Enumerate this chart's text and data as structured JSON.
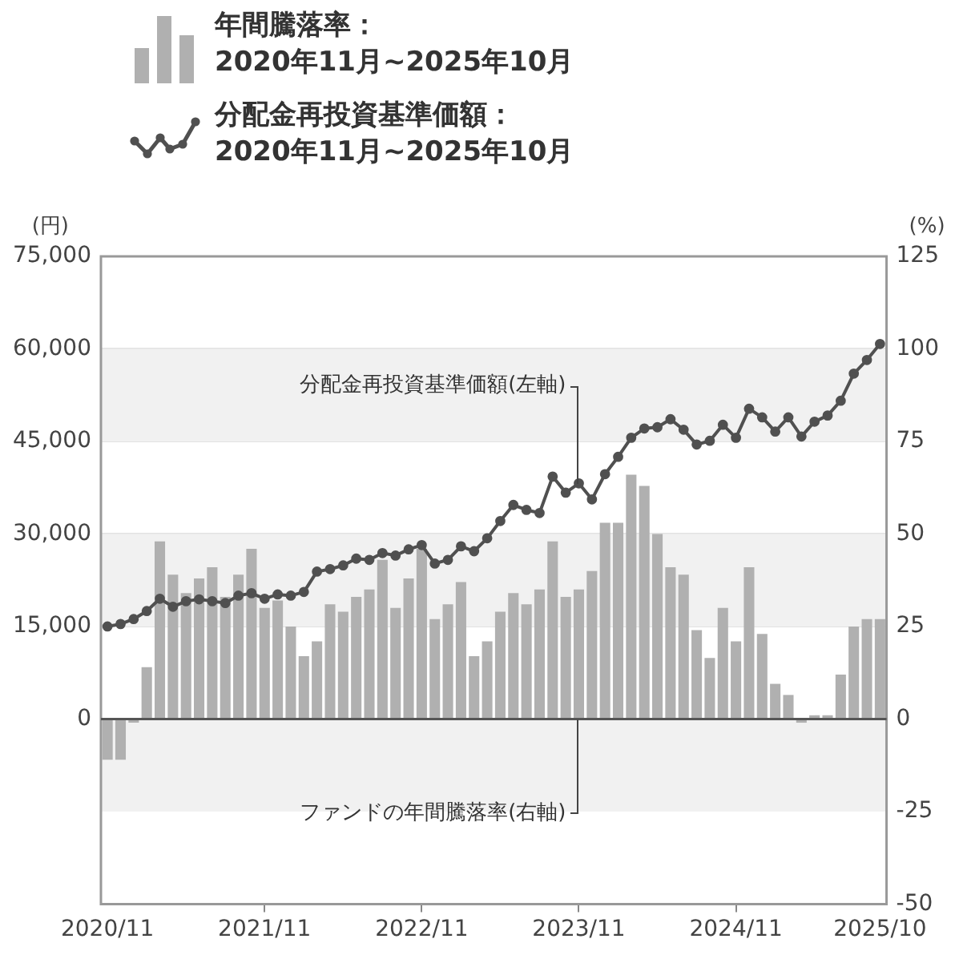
{
  "chart_data": {
    "type": "bar",
    "ylabel": "(円)",
    "y2label": "(%)",
    "categories": [
      "2020/11",
      null,
      null,
      null,
      null,
      null,
      null,
      null,
      null,
      null,
      null,
      null,
      "2021/11",
      null,
      null,
      null,
      null,
      null,
      null,
      null,
      null,
      null,
      null,
      null,
      "2022/11",
      null,
      null,
      null,
      null,
      null,
      null,
      null,
      null,
      null,
      null,
      null,
      "2023/11",
      null,
      null,
      null,
      null,
      null,
      null,
      null,
      null,
      null,
      null,
      null,
      "2024/11",
      null,
      null,
      null,
      null,
      null,
      null,
      null,
      null,
      null,
      null,
      "2025/10"
    ],
    "series": [
      {
        "name": "分配金再投資基準価額：\n2020年11月~2025年10月",
        "type": "line",
        "color": "#505050",
        "values": [
          15000,
          15400,
          16200,
          17500,
          19500,
          18200,
          19100,
          19400,
          19100,
          18800,
          20000,
          20400,
          19500,
          20200,
          20000,
          20600,
          23900,
          24300,
          24900,
          26000,
          25800,
          26900,
          26500,
          27500,
          28200,
          25200,
          25800,
          28000,
          27200,
          29300,
          32100,
          34700,
          33900,
          33400,
          39300,
          36700,
          38200,
          35600,
          39700,
          42500,
          45600,
          47100,
          47300,
          48600,
          46900,
          44500,
          45100,
          47700,
          45600,
          50300,
          48900,
          46600,
          48900,
          45800,
          48200,
          49200,
          51600,
          56000,
          58200,
          60800
        ]
      },
      {
        "name": "年間騰落率：\n2020年11月~2025年10月",
        "axis": "y2",
        "color": "#b0b0b0",
        "values": [
          -11,
          -11,
          -1,
          14,
          48,
          39,
          34,
          38,
          41,
          33,
          39,
          46,
          30,
          32,
          25,
          17,
          21,
          31,
          29,
          33,
          35,
          43,
          30,
          38,
          46,
          27,
          31,
          37,
          17,
          21,
          29,
          34,
          31,
          35,
          48,
          33,
          35,
          40,
          53,
          53,
          66,
          63,
          50,
          41,
          39,
          24,
          16.5,
          30,
          21,
          41,
          23,
          9.5,
          6.5,
          -1,
          1,
          1,
          12,
          25,
          27,
          27
        ]
      }
    ],
    "ylim": [
      -30000,
      75000
    ],
    "yticks": [
      {
        "value": 0,
        "label": "0"
      },
      {
        "value": 15000,
        "label": "15,000"
      },
      {
        "value": 30000,
        "label": "30,000"
      },
      {
        "value": 45000,
        "label": "45,000"
      },
      {
        "value": 60000,
        "label": "60,000"
      },
      {
        "value": 75000,
        "label": "75,000"
      }
    ],
    "y2lim": [
      -50,
      125
    ],
    "y2ticks": [
      -50,
      -25,
      0,
      25,
      50,
      75,
      100,
      125
    ],
    "bands": [
      {
        "axis": "y",
        "from": 15000,
        "to": 30000,
        "color": "#f1f1f1"
      },
      {
        "axis": "y",
        "from": 45000,
        "to": 60000,
        "color": "#f1f1f1"
      },
      {
        "axis": "y2",
        "from": -25,
        "to": 0,
        "color": "#f1f1f1"
      }
    ],
    "annotations": [
      {
        "text": "分配金再投資基準価額(左軸)",
        "x": "2023/11",
        "y": 38200
      },
      {
        "text": "ファンドの年間騰落率(右軸)",
        "x": "2023/11",
        "y": 0
      }
    ],
    "marker": "circle",
    "grid": "y",
    "legend": "top"
  }
}
